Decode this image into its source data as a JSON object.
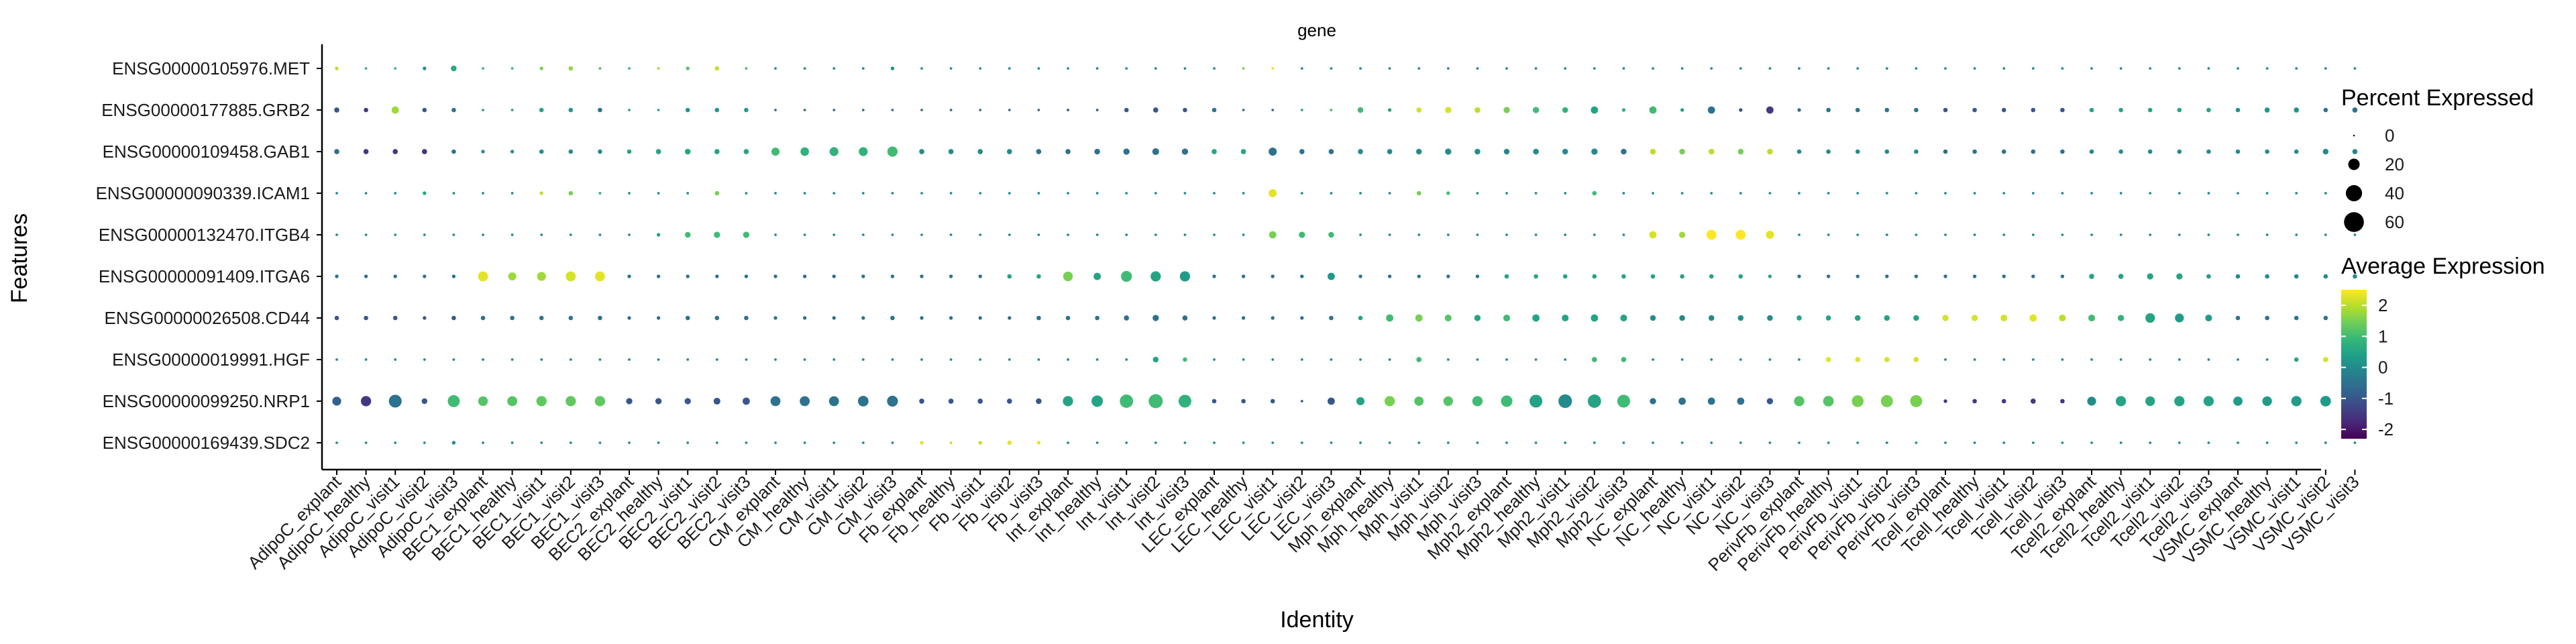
{
  "chart_data": {
    "type": "dot",
    "title": "gene",
    "xlabel": "Identity",
    "ylabel": "Features",
    "identities": [
      "AdipoC_explant",
      "AdipoC_healthy",
      "AdipoC_visit1",
      "AdipoC_visit2",
      "AdipoC_visit3",
      "BEC1_explant",
      "BEC1_healthy",
      "BEC1_visit1",
      "BEC1_visit2",
      "BEC1_visit3",
      "BEC2_explant",
      "BEC2_healthy",
      "BEC2_visit1",
      "BEC2_visit2",
      "BEC2_visit3",
      "CM_explant",
      "CM_healthy",
      "CM_visit1",
      "CM_visit2",
      "CM_visit3",
      "Fb_explant",
      "Fb_healthy",
      "Fb_visit1",
      "Fb_visit2",
      "Fb_visit3",
      "Int_explant",
      "Int_healthy",
      "Int_visit1",
      "Int_visit2",
      "Int_visit3",
      "LEC_explant",
      "LEC_healthy",
      "LEC_visit1",
      "LEC_visit2",
      "LEC_visit3",
      "Mph_explant",
      "Mph_healthy",
      "Mph_visit1",
      "Mph_visit2",
      "Mph_visit3",
      "Mph2_explant",
      "Mph2_healthy",
      "Mph2_visit1",
      "Mph2_visit2",
      "Mph2_visit3",
      "NC_explant",
      "NC_healthy",
      "NC_visit1",
      "NC_visit2",
      "NC_visit3",
      "PerivFb_explant",
      "PerivFb_healthy",
      "PerivFb_visit1",
      "PerivFb_visit2",
      "PerivFb_visit3",
      "Tcell_explant",
      "Tcell_healthy",
      "Tcell_visit1",
      "Tcell_visit2",
      "Tcell_visit3",
      "Tcell2_explant",
      "Tcell2_healthy",
      "Tcell2_visit1",
      "Tcell2_visit2",
      "Tcell2_visit3",
      "VSMC_explant",
      "VSMC_healthy",
      "VSMC_visit1",
      "VSMC_visit2",
      "VSMC_visit3"
    ],
    "features": [
      "ENSG00000105976.MET",
      "ENSG00000177885.GRB2",
      "ENSG00000109458.GAB1",
      "ENSG00000090339.ICAM1",
      "ENSG00000132470.ITGB4",
      "ENSG00000091409.ITGA6",
      "ENSG00000026508.CD44",
      "ENSG00000019991.HGF",
      "ENSG00000099250.NRP1",
      "ENSG00000169439.SDC2"
    ],
    "pct_scale": {
      "title": "Percent Expressed",
      "breaks": [
        0,
        20,
        40,
        60
      ],
      "max": 70
    },
    "color_scale": {
      "title": "Average Expression",
      "breaks": [
        2,
        1,
        0,
        -1,
        -2
      ],
      "min": -2.3,
      "max": 2.5,
      "colors": [
        "#440154",
        "#482878",
        "#3e4989",
        "#31688e",
        "#26828e",
        "#1f9e89",
        "#35b779",
        "#6ece58",
        "#b5de2b",
        "#fde725"
      ]
    },
    "grid": false,
    "legend_position": "right",
    "pct": [
      [
        2,
        1,
        1,
        2,
        5,
        1,
        1,
        2,
        3,
        1,
        1,
        1,
        2,
        3,
        1,
        1,
        1,
        1,
        1,
        2,
        1,
        1,
        1,
        1,
        1,
        1,
        1,
        1,
        1,
        1,
        1,
        1,
        1,
        1,
        1,
        1,
        1,
        1,
        1,
        1,
        1,
        1,
        1,
        1,
        1,
        1,
        1,
        1,
        1,
        1,
        1,
        1,
        1,
        1,
        1,
        1,
        1,
        1,
        1,
        1,
        1,
        1,
        1,
        1,
        1,
        1,
        1,
        1,
        1,
        1
      ],
      [
        4,
        3,
        8,
        3,
        3,
        1,
        1,
        3,
        3,
        3,
        1,
        1,
        3,
        3,
        3,
        1,
        1,
        1,
        1,
        1,
        1,
        1,
        1,
        1,
        1,
        1,
        1,
        3,
        4,
        3,
        3,
        1,
        1,
        1,
        1,
        5,
        2,
        4,
        6,
        5,
        6,
        6,
        5,
        8,
        2,
        8,
        2,
        8,
        2,
        8,
        2,
        3,
        3,
        3,
        3,
        3,
        3,
        3,
        3,
        3,
        3,
        3,
        3,
        3,
        3,
        3,
        4,
        4,
        3,
        4
      ],
      [
        4,
        4,
        4,
        4,
        3,
        2,
        2,
        3,
        3,
        3,
        3,
        4,
        5,
        4,
        4,
        10,
        11,
        12,
        12,
        16,
        4,
        4,
        4,
        4,
        4,
        4,
        5,
        6,
        7,
        6,
        4,
        4,
        10,
        4,
        4,
        4,
        4,
        5,
        6,
        5,
        5,
        5,
        5,
        6,
        5,
        5,
        5,
        5,
        5,
        5,
        3,
        3,
        3,
        3,
        3,
        3,
        3,
        3,
        3,
        3,
        3,
        3,
        3,
        3,
        3,
        3,
        3,
        3,
        5,
        4
      ],
      [
        1,
        1,
        1,
        2,
        1,
        1,
        1,
        2,
        3,
        1,
        1,
        1,
        1,
        3,
        1,
        1,
        1,
        1,
        1,
        1,
        1,
        1,
        1,
        1,
        1,
        1,
        1,
        1,
        1,
        1,
        1,
        1,
        10,
        1,
        1,
        1,
        1,
        3,
        2,
        1,
        1,
        1,
        1,
        3,
        1,
        1,
        1,
        1,
        1,
        1,
        1,
        1,
        1,
        1,
        1,
        1,
        1,
        1,
        1,
        1,
        1,
        1,
        1,
        1,
        1,
        1,
        1,
        1,
        1,
        1
      ],
      [
        1,
        1,
        1,
        1,
        1,
        1,
        1,
        1,
        1,
        1,
        1,
        2,
        5,
        6,
        6,
        1,
        1,
        1,
        1,
        1,
        1,
        1,
        1,
        1,
        1,
        1,
        1,
        1,
        1,
        1,
        1,
        1,
        8,
        6,
        5,
        1,
        1,
        1,
        1,
        1,
        1,
        1,
        1,
        1,
        1,
        8,
        6,
        15,
        15,
        10,
        1,
        1,
        1,
        1,
        1,
        1,
        1,
        1,
        1,
        1,
        1,
        1,
        1,
        1,
        1,
        1,
        1,
        1,
        1,
        1
      ],
      [
        2,
        2,
        2,
        2,
        2,
        15,
        10,
        12,
        15,
        15,
        2,
        2,
        2,
        2,
        2,
        2,
        2,
        2,
        2,
        2,
        2,
        2,
        2,
        3,
        3,
        14,
        8,
        18,
        16,
        16,
        2,
        2,
        2,
        2,
        8,
        2,
        2,
        2,
        2,
        2,
        3,
        3,
        3,
        3,
        3,
        3,
        3,
        3,
        3,
        2,
        2,
        2,
        2,
        2,
        2,
        2,
        2,
        2,
        2,
        2,
        4,
        4,
        6,
        6,
        3,
        3,
        3,
        3,
        3,
        3
      ],
      [
        3,
        3,
        3,
        2,
        3,
        3,
        3,
        3,
        3,
        3,
        2,
        2,
        3,
        3,
        3,
        2,
        2,
        2,
        2,
        3,
        2,
        2,
        2,
        2,
        3,
        3,
        3,
        4,
        6,
        4,
        2,
        2,
        2,
        2,
        3,
        3,
        8,
        8,
        7,
        6,
        7,
        8,
        7,
        8,
        7,
        5,
        5,
        5,
        5,
        5,
        4,
        4,
        5,
        5,
        5,
        6,
        6,
        7,
        8,
        7,
        7,
        6,
        14,
        12,
        7,
        3,
        3,
        3,
        3,
        3
      ],
      [
        1,
        1,
        1,
        1,
        1,
        1,
        1,
        1,
        1,
        1,
        1,
        1,
        1,
        1,
        1,
        1,
        1,
        1,
        1,
        1,
        1,
        1,
        1,
        1,
        1,
        1,
        1,
        1,
        5,
        3,
        1,
        1,
        1,
        1,
        1,
        1,
        1,
        4,
        1,
        1,
        1,
        1,
        1,
        4,
        4,
        1,
        1,
        1,
        1,
        1,
        1,
        4,
        4,
        4,
        4,
        1,
        1,
        1,
        1,
        1,
        1,
        1,
        1,
        1,
        1,
        1,
        1,
        3,
        4,
        1
      ],
      [
        12,
        16,
        25,
        5,
        22,
        14,
        15,
        16,
        16,
        16,
        6,
        6,
        6,
        7,
        8,
        15,
        15,
        15,
        17,
        18,
        4,
        4,
        4,
        4,
        5,
        16,
        20,
        27,
        30,
        25,
        3,
        3,
        3,
        1,
        8,
        10,
        16,
        13,
        14,
        16,
        20,
        25,
        28,
        27,
        25,
        6,
        8,
        8,
        8,
        6,
        16,
        17,
        21,
        22,
        22,
        2,
        3,
        3,
        4,
        3,
        12,
        16,
        14,
        16,
        16,
        13,
        14,
        16,
        17,
        20
      ],
      [
        1,
        1,
        1,
        1,
        2,
        1,
        1,
        1,
        1,
        1,
        1,
        1,
        1,
        1,
        1,
        1,
        1,
        1,
        1,
        1,
        2,
        1,
        2,
        3,
        2,
        1,
        1,
        1,
        1,
        1,
        1,
        1,
        1,
        1,
        1,
        1,
        1,
        1,
        1,
        1,
        1,
        1,
        1,
        1,
        1,
        1,
        1,
        1,
        1,
        1,
        1,
        1,
        1,
        1,
        1,
        1,
        1,
        1,
        1,
        1,
        1,
        1,
        1,
        1,
        1,
        1,
        1,
        1,
        1,
        1
      ]
    ],
    "avg": [
      [
        2.0,
        0.8,
        0.8,
        0.0,
        0.6,
        0.9,
        0.9,
        1.5,
        1.7,
        1.0,
        0.9,
        1.8,
        1.2,
        2.1,
        1.0,
        0.0,
        0.0,
        0.0,
        0.0,
        0.0,
        0.0,
        0.0,
        0.0,
        0.0,
        0.0,
        0.0,
        0.0,
        0.0,
        0.0,
        0.0,
        0.0,
        1.5,
        2.3,
        0.0,
        0.0,
        0.0,
        0.0,
        0.0,
        0.0,
        0.0,
        0.0,
        0.0,
        0.0,
        0.0,
        0.0,
        0.0,
        0.0,
        0.0,
        0.0,
        0.0,
        0.0,
        0.0,
        0.0,
        0.0,
        0.0,
        0.0,
        0.0,
        0.0,
        0.0,
        0.0,
        0.0,
        0.0,
        0.0,
        0.0,
        0.0,
        0.0,
        0.0,
        0.0,
        0.0,
        0.0
      ],
      [
        -1.0,
        -1.5,
        1.8,
        -1.0,
        -0.5,
        0.5,
        0.5,
        0.5,
        0.2,
        -0.5,
        0.5,
        0.5,
        0.2,
        0.2,
        0.3,
        -0.5,
        -0.5,
        -0.5,
        -0.5,
        -0.5,
        -0.5,
        -0.5,
        -0.5,
        -0.5,
        -0.5,
        -1.0,
        -1.0,
        -1.0,
        -1.0,
        -1.0,
        -0.5,
        -0.5,
        -0.5,
        0.5,
        1.0,
        1.0,
        0.5,
        2.2,
        2.2,
        2.0,
        1.5,
        1.0,
        0.8,
        0.5,
        0.8,
        1.0,
        0.5,
        -0.5,
        -1.0,
        -1.5,
        -0.5,
        -0.5,
        -0.5,
        -0.5,
        -0.5,
        -1.0,
        -1.0,
        -1.0,
        -1.0,
        -1.0,
        0.5,
        0.5,
        0.5,
        0.5,
        0.5,
        0.2,
        0.2,
        0.2,
        -0.5,
        -0.5
      ],
      [
        -0.5,
        -1.5,
        -1.5,
        -1.5,
        -0.5,
        0.0,
        0.0,
        0.0,
        0.0,
        0.0,
        0.5,
        0.5,
        0.5,
        0.5,
        0.5,
        1.0,
        0.8,
        0.8,
        0.8,
        1.0,
        0.0,
        0.0,
        0.0,
        0.0,
        -0.5,
        -0.5,
        -0.5,
        -0.5,
        -0.5,
        -0.5,
        0.5,
        0.5,
        -0.5,
        -0.5,
        -0.5,
        0.0,
        0.0,
        0.0,
        0.0,
        0.0,
        0.0,
        0.0,
        0.0,
        0.0,
        -0.5,
        2.0,
        1.5,
        2.0,
        1.5,
        2.0,
        0.0,
        0.0,
        0.0,
        0.0,
        0.0,
        -0.5,
        -0.5,
        -0.5,
        -0.5,
        -0.5,
        0.0,
        0.0,
        0.0,
        0.0,
        0.0,
        0.0,
        0.0,
        0.0,
        0.0,
        0.0
      ],
      [
        0.0,
        0.0,
        0.0,
        0.5,
        0.0,
        0.0,
        0.0,
        2.0,
        1.5,
        0.5,
        0.0,
        0.0,
        0.0,
        1.5,
        0.0,
        0.0,
        0.0,
        0.0,
        0.0,
        0.0,
        0.0,
        0.0,
        0.0,
        0.0,
        0.0,
        0.0,
        0.0,
        0.0,
        0.0,
        0.0,
        0.0,
        0.0,
        2.3,
        0.0,
        0.0,
        0.0,
        0.0,
        1.5,
        1.0,
        0.0,
        0.0,
        0.0,
        0.0,
        1.0,
        0.0,
        0.0,
        0.0,
        0.0,
        0.0,
        0.0,
        0.0,
        0.0,
        0.0,
        0.0,
        0.0,
        0.0,
        0.0,
        0.0,
        0.0,
        0.0,
        0.0,
        0.0,
        0.0,
        0.0,
        0.0,
        0.0,
        0.0,
        0.0,
        0.0,
        0.0
      ],
      [
        0.0,
        0.0,
        0.0,
        0.0,
        0.0,
        0.0,
        0.0,
        0.0,
        0.0,
        0.0,
        0.0,
        0.5,
        1.0,
        1.0,
        1.0,
        0.0,
        0.0,
        0.0,
        0.0,
        0.0,
        0.0,
        0.0,
        0.0,
        0.0,
        0.0,
        0.0,
        0.0,
        0.0,
        0.0,
        0.0,
        0.0,
        0.0,
        1.5,
        1.0,
        1.0,
        0.0,
        0.0,
        0.0,
        0.0,
        0.0,
        0.0,
        0.0,
        0.0,
        0.0,
        0.0,
        2.2,
        1.8,
        2.5,
        2.5,
        2.3,
        0.0,
        0.0,
        0.0,
        0.0,
        0.0,
        0.0,
        0.0,
        0.0,
        0.0,
        0.0,
        0.0,
        0.0,
        0.0,
        0.0,
        0.0,
        0.0,
        0.0,
        0.0,
        0.0,
        0.0
      ],
      [
        -0.5,
        -0.5,
        -0.5,
        -0.5,
        -0.5,
        2.3,
        1.8,
        1.8,
        2.2,
        2.3,
        -0.5,
        -0.5,
        -0.5,
        -0.5,
        -0.5,
        -0.5,
        -0.5,
        -0.5,
        -0.5,
        -0.5,
        -0.5,
        -0.5,
        -0.5,
        0.5,
        0.5,
        1.5,
        0.5,
        1.0,
        0.5,
        0.3,
        -0.5,
        -0.5,
        -0.5,
        -0.5,
        0.3,
        -0.5,
        -0.5,
        -0.5,
        -0.5,
        -0.5,
        0.5,
        0.5,
        0.5,
        0.5,
        0.5,
        0.5,
        0.5,
        0.5,
        0.5,
        0.5,
        -0.5,
        -0.5,
        -0.5,
        -0.5,
        -0.5,
        -0.5,
        -0.5,
        -0.5,
        -0.5,
        -0.5,
        0.5,
        0.5,
        0.5,
        0.5,
        0.3,
        0.0,
        0.0,
        0.0,
        0.0,
        0.0
      ],
      [
        -1.0,
        -1.0,
        -1.0,
        -1.0,
        -1.0,
        -0.5,
        -0.5,
        -0.5,
        -0.5,
        -0.5,
        -0.5,
        -0.5,
        -0.5,
        -0.5,
        -0.5,
        -0.5,
        -0.5,
        -0.5,
        -0.5,
        -0.5,
        -0.5,
        -0.5,
        -0.5,
        -0.5,
        -0.5,
        -0.5,
        -0.5,
        -0.5,
        -0.5,
        -0.5,
        -0.5,
        -0.5,
        -0.5,
        -0.5,
        -0.5,
        0.5,
        1.0,
        1.5,
        1.2,
        0.5,
        1.0,
        0.5,
        0.5,
        0.5,
        0.5,
        0.0,
        0.0,
        0.0,
        0.0,
        0.0,
        0.5,
        0.5,
        0.5,
        0.5,
        0.5,
        2.2,
        2.2,
        2.2,
        2.3,
        2.0,
        1.0,
        0.8,
        0.5,
        0.3,
        0.3,
        -0.5,
        -0.5,
        -0.5,
        -0.5,
        -0.5
      ],
      [
        0.0,
        0.0,
        0.0,
        0.0,
        0.0,
        0.0,
        0.0,
        0.0,
        0.0,
        0.0,
        0.0,
        0.0,
        0.0,
        0.0,
        0.0,
        0.0,
        0.0,
        0.0,
        0.0,
        0.0,
        0.0,
        0.0,
        0.0,
        0.0,
        0.0,
        0.0,
        0.0,
        0.0,
        0.5,
        1.0,
        0.0,
        0.0,
        0.0,
        0.0,
        0.0,
        0.0,
        0.0,
        1.0,
        0.0,
        0.0,
        0.0,
        0.0,
        0.0,
        1.0,
        1.0,
        0.0,
        0.0,
        0.0,
        0.0,
        0.0,
        0.0,
        2.3,
        2.3,
        2.2,
        2.2,
        0.0,
        0.0,
        0.0,
        0.0,
        0.0,
        0.0,
        0.0,
        0.0,
        0.0,
        0.0,
        0.0,
        0.0,
        0.5,
        2.2,
        0.0
      ],
      [
        -0.8,
        -1.5,
        -0.5,
        -1.0,
        1.0,
        1.2,
        1.2,
        1.3,
        1.3,
        1.3,
        -1.0,
        -1.0,
        -1.0,
        -1.0,
        -1.0,
        -0.5,
        -0.5,
        -0.5,
        -0.5,
        -0.5,
        -1.0,
        -1.0,
        -1.0,
        -1.0,
        -1.0,
        0.5,
        0.5,
        1.0,
        1.0,
        0.8,
        -1.0,
        -1.0,
        -1.0,
        -1.0,
        -1.0,
        0.5,
        1.5,
        1.2,
        1.2,
        1.0,
        1.0,
        0.5,
        0.0,
        0.5,
        1.0,
        -0.5,
        -0.5,
        -0.5,
        -0.5,
        -1.0,
        1.2,
        1.2,
        1.5,
        1.5,
        1.5,
        -1.5,
        -1.5,
        -1.5,
        -1.5,
        -1.5,
        0.0,
        0.5,
        0.5,
        0.5,
        0.5,
        0.3,
        0.3,
        0.3,
        0.3,
        0.5
      ],
      [
        0.0,
        0.0,
        0.0,
        0.0,
        0.0,
        0.0,
        0.0,
        0.0,
        0.0,
        0.0,
        0.0,
        0.0,
        0.0,
        0.0,
        0.0,
        0.0,
        0.0,
        0.0,
        0.0,
        0.0,
        2.3,
        2.0,
        2.0,
        2.3,
        2.3,
        0.0,
        0.0,
        0.0,
        0.0,
        0.0,
        0.0,
        0.0,
        0.0,
        0.0,
        0.0,
        0.0,
        0.0,
        0.0,
        0.0,
        0.0,
        0.0,
        0.0,
        0.0,
        0.0,
        0.0,
        0.0,
        0.0,
        0.0,
        0.0,
        0.0,
        0.0,
        0.0,
        0.0,
        0.0,
        0.0,
        0.0,
        0.0,
        0.0,
        0.0,
        0.0,
        0.0,
        0.0,
        0.0,
        0.0,
        0.0,
        0.0,
        0.0,
        0.0,
        0.0,
        0.0
      ]
    ]
  }
}
